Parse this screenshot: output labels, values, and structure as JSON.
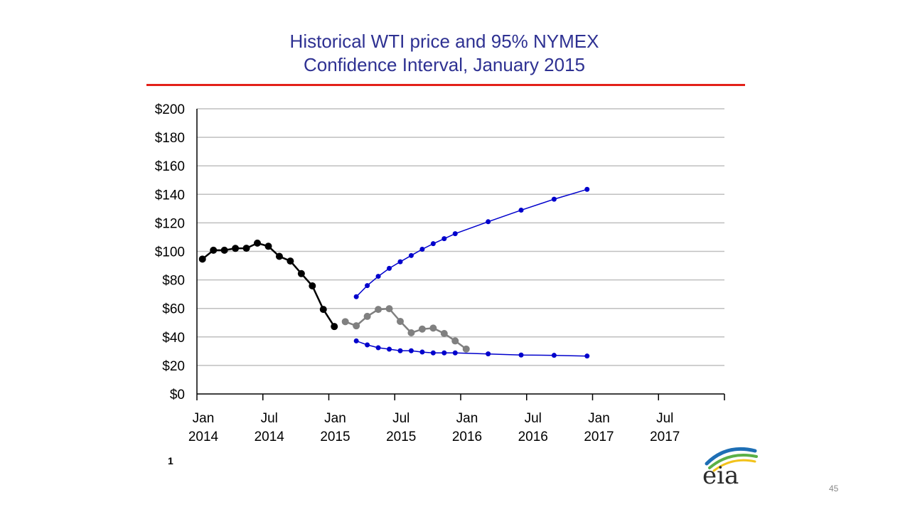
{
  "slide": {
    "title_line1": "Historical WTI price and 95% NYMEX",
    "title_line2": "Confidence Interval, January 2015",
    "footnote": "1",
    "page_number": "45",
    "logo_text": "eia"
  },
  "colors": {
    "title": "#2E3192",
    "rule": "#E32119",
    "historical": "#000000",
    "forecast": "#808080",
    "confidence": "#0000CC",
    "grid": "#BFBFBF"
  },
  "chart_data": {
    "type": "line",
    "title": "Historical WTI price and 95% NYMEX Confidence Interval, January 2015",
    "xlabel": "",
    "ylabel": "",
    "ylim": [
      0,
      200
    ],
    "xlim": [
      "2014-01",
      "2017-12"
    ],
    "y_ticks": [
      "$0",
      "$20",
      "$40",
      "$60",
      "$80",
      "$100",
      "$120",
      "$140",
      "$160",
      "$180",
      "$200"
    ],
    "x_ticks": [
      {
        "month": "Jan",
        "year": "2014",
        "x": "2014-01"
      },
      {
        "month": "Jul",
        "year": "2014",
        "x": "2014-07"
      },
      {
        "month": "Jan",
        "year": "2015",
        "x": "2015-01"
      },
      {
        "month": "Jul",
        "year": "2015",
        "x": "2015-07"
      },
      {
        "month": "Jan",
        "year": "2016",
        "x": "2016-01"
      },
      {
        "month": "Jul",
        "year": "2016",
        "x": "2016-07"
      },
      {
        "month": "Jan",
        "year": "2017",
        "x": "2017-01"
      },
      {
        "month": "Jul",
        "year": "2017",
        "x": "2017-07"
      }
    ],
    "grid": true,
    "legend": "none",
    "series": [
      {
        "key": "historical",
        "points": [
          [
            "2014-01",
            94.6
          ],
          [
            "2014-02",
            100.8
          ],
          [
            "2014-03",
            100.8
          ],
          [
            "2014-04",
            102.1
          ],
          [
            "2014-05",
            102.2
          ],
          [
            "2014-06",
            105.8
          ],
          [
            "2014-07",
            103.6
          ],
          [
            "2014-08",
            96.5
          ],
          [
            "2014-09",
            93.2
          ],
          [
            "2014-10",
            84.4
          ],
          [
            "2014-11",
            75.8
          ],
          [
            "2014-12",
            59.3
          ],
          [
            "2015-01",
            47.3
          ]
        ]
      },
      {
        "key": "forecast",
        "points": [
          [
            "2015-02",
            50.7
          ],
          [
            "2015-03",
            47.8
          ],
          [
            "2015-04",
            54.4
          ],
          [
            "2015-05",
            59.3
          ],
          [
            "2015-06",
            59.8
          ],
          [
            "2015-07",
            50.9
          ],
          [
            "2015-08",
            42.9
          ],
          [
            "2015-09",
            45.5
          ],
          [
            "2015-10",
            46.2
          ],
          [
            "2015-11",
            42.4
          ],
          [
            "2015-12",
            37.2
          ],
          [
            "2016-01",
            31.5
          ]
        ]
      },
      {
        "key": "upper",
        "points": [
          [
            "2015-03",
            68.2
          ],
          [
            "2015-04",
            76.0
          ],
          [
            "2015-05",
            82.5
          ],
          [
            "2015-06",
            88.1
          ],
          [
            "2015-07",
            92.7
          ],
          [
            "2015-08",
            97.1
          ],
          [
            "2015-09",
            101.5
          ],
          [
            "2015-10",
            105.4
          ],
          [
            "2015-11",
            108.9
          ],
          [
            "2015-12",
            112.4
          ],
          [
            "2016-03",
            120.8
          ],
          [
            "2016-06",
            128.9
          ],
          [
            "2016-09",
            136.6
          ],
          [
            "2016-12",
            143.5
          ]
        ]
      },
      {
        "key": "lower",
        "points": [
          [
            "2015-03",
            37.2
          ],
          [
            "2015-04",
            34.4
          ],
          [
            "2015-05",
            32.4
          ],
          [
            "2015-06",
            31.4
          ],
          [
            "2015-07",
            30.3
          ],
          [
            "2015-08",
            30.3
          ],
          [
            "2015-09",
            29.4
          ],
          [
            "2015-10",
            28.8
          ],
          [
            "2015-11",
            28.8
          ],
          [
            "2015-12",
            28.8
          ],
          [
            "2016-03",
            28.1
          ],
          [
            "2016-06",
            27.3
          ],
          [
            "2016-09",
            27.1
          ],
          [
            "2016-12",
            26.6
          ]
        ]
      }
    ]
  }
}
